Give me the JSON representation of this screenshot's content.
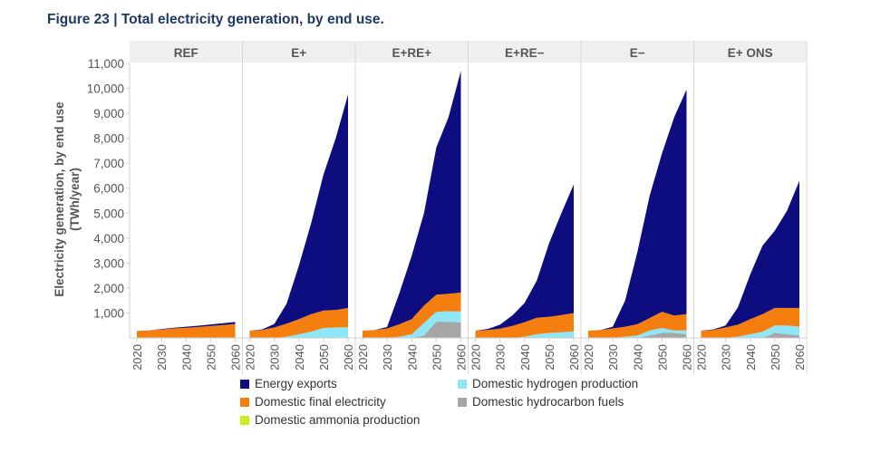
{
  "figure_title": "Figure 23 | Total electricity generation, by end use.",
  "chart_data": {
    "type": "area",
    "stacked": true,
    "ylabel_line1": "Electricity generation, by end use",
    "ylabel_line2": "(TWh/year)",
    "ylim": [
      0,
      11000
    ],
    "yticks": [
      1000,
      2000,
      3000,
      4000,
      5000,
      6000,
      7000,
      8000,
      9000,
      10000,
      11000
    ],
    "ytick_labels": [
      "1,000",
      "2,000",
      "3,000",
      "4,000",
      "5,000",
      "6,000",
      "7,000",
      "8,000",
      "9,000",
      "10,000",
      "11,000"
    ],
    "x": [
      2020,
      2025,
      2030,
      2035,
      2040,
      2045,
      2050,
      2055,
      2060
    ],
    "xtick_labels": [
      "2020",
      "2030",
      "2040",
      "2050",
      "2060"
    ],
    "grid": false,
    "legend_position": "bottom",
    "series_order": [
      "Domestic hydrocarbon fuels",
      "Domestic ammonia production",
      "Domestic hydrogen production",
      "Domestic final electricity",
      "Energy exports"
    ],
    "colors": {
      "Energy exports": "#0d0d80",
      "Domestic final electricity": "#f57f0e",
      "Domestic ammonia production": "#c5f01e",
      "Domestic hydrogen production": "#8ee6f7",
      "Domestic hydrocarbon fuels": "#a6a6a6"
    },
    "legend": [
      {
        "name": "Energy exports",
        "color": "#0d0d80"
      },
      {
        "name": "Domestic hydrogen production",
        "color": "#8ee6f7"
      },
      {
        "name": "Domestic final electricity",
        "color": "#f57f0e"
      },
      {
        "name": "Domestic hydrocarbon fuels",
        "color": "#a6a6a6"
      },
      {
        "name": "Domestic ammonia production",
        "color": "#c5f01e"
      }
    ],
    "panels": [
      {
        "name": "REF",
        "series": [
          {
            "name": "Domestic hydrocarbon fuels",
            "values": [
              0,
              0,
              0,
              0,
              0,
              0,
              0,
              0,
              0
            ]
          },
          {
            "name": "Domestic ammonia production",
            "values": [
              0,
              0,
              0,
              0,
              0,
              0,
              0,
              0,
              0
            ]
          },
          {
            "name": "Domestic hydrogen production",
            "values": [
              0,
              0,
              0,
              0,
              0,
              0,
              0,
              0,
              0
            ]
          },
          {
            "name": "Domestic final electricity",
            "values": [
              280,
              300,
              340,
              380,
              410,
              440,
              480,
              520,
              560
            ]
          },
          {
            "name": "Energy exports",
            "values": [
              0,
              0,
              20,
              30,
              40,
              50,
              60,
              70,
              80
            ]
          }
        ]
      },
      {
        "name": "E+",
        "series": [
          {
            "name": "Domestic hydrocarbon fuels",
            "values": [
              0,
              0,
              0,
              0,
              0,
              0,
              0,
              20,
              10
            ]
          },
          {
            "name": "Domestic ammonia production",
            "values": [
              0,
              0,
              0,
              0,
              0,
              0,
              0,
              0,
              0
            ]
          },
          {
            "name": "Domestic hydrogen production",
            "values": [
              0,
              0,
              0,
              50,
              150,
              250,
              400,
              400,
              420
            ]
          },
          {
            "name": "Domestic final electricity",
            "values": [
              290,
              320,
              420,
              520,
              600,
              700,
              700,
              700,
              770
            ]
          },
          {
            "name": "Energy exports",
            "values": [
              0,
              20,
              140,
              800,
              2150,
              3650,
              5450,
              6880,
              8550
            ]
          }
        ]
      },
      {
        "name": "E+RE+",
        "series": [
          {
            "name": "Domestic hydrocarbon fuels",
            "values": [
              0,
              0,
              0,
              0,
              0,
              100,
              650,
              650,
              620
            ]
          },
          {
            "name": "Domestic ammonia production",
            "values": [
              0,
              0,
              0,
              0,
              0,
              0,
              0,
              0,
              0
            ]
          },
          {
            "name": "Domestic hydrogen production",
            "values": [
              0,
              0,
              0,
              50,
              150,
              500,
              400,
              420,
              440
            ]
          },
          {
            "name": "Domestic final electricity",
            "values": [
              290,
              320,
              380,
              500,
              600,
              700,
              680,
              700,
              760
            ]
          },
          {
            "name": "Energy exports",
            "values": [
              0,
              0,
              60,
              1250,
              2550,
              3700,
              5900,
              7080,
              8880
            ]
          }
        ]
      },
      {
        "name": "E+RE−",
        "series": [
          {
            "name": "Domestic hydrocarbon fuels",
            "values": [
              0,
              0,
              0,
              0,
              0,
              0,
              0,
              0,
              0
            ]
          },
          {
            "name": "Domestic ammonia production",
            "values": [
              0,
              0,
              0,
              0,
              0,
              0,
              0,
              0,
              0
            ]
          },
          {
            "name": "Domestic hydrogen production",
            "values": [
              0,
              0,
              0,
              0,
              50,
              150,
              200,
              230,
              260
            ]
          },
          {
            "name": "Domestic final electricity",
            "values": [
              290,
              320,
              370,
              480,
              580,
              660,
              650,
              690,
              740
            ]
          },
          {
            "name": "Energy exports",
            "values": [
              0,
              40,
              160,
              420,
              770,
              1490,
              2950,
              4080,
              5150
            ]
          }
        ]
      },
      {
        "name": "E−",
        "series": [
          {
            "name": "Domestic hydrocarbon fuels",
            "values": [
              0,
              0,
              0,
              0,
              0,
              100,
              200,
              200,
              150
            ]
          },
          {
            "name": "Domestic ammonia production",
            "values": [
              0,
              0,
              0,
              0,
              0,
              0,
              0,
              0,
              0
            ]
          },
          {
            "name": "Domestic hydrogen production",
            "values": [
              0,
              0,
              0,
              50,
              100,
              200,
              200,
              100,
              150
            ]
          },
          {
            "name": "Domestic final electricity",
            "values": [
              290,
              320,
              380,
              400,
              450,
              500,
              650,
              600,
              650
            ]
          },
          {
            "name": "Energy exports",
            "values": [
              0,
              0,
              70,
              1050,
              2900,
              4900,
              6350,
              7950,
              9000
            ]
          }
        ]
      },
      {
        "name": "E+ ONS",
        "series": [
          {
            "name": "Domestic hydrocarbon fuels",
            "values": [
              0,
              0,
              0,
              0,
              0,
              0,
              200,
              150,
              100
            ]
          },
          {
            "name": "Domestic ammonia production",
            "values": [
              0,
              0,
              0,
              0,
              0,
              0,
              0,
              0,
              0
            ]
          },
          {
            "name": "Domestic hydrogen production",
            "values": [
              0,
              0,
              0,
              50,
              150,
              250,
              300,
              350,
              350
            ]
          },
          {
            "name": "Domestic final electricity",
            "values": [
              290,
              320,
              420,
              480,
              600,
              700,
              700,
              700,
              750
            ]
          },
          {
            "name": "Energy exports",
            "values": [
              0,
              20,
              80,
              700,
              1800,
              2750,
              3100,
              3900,
              5100
            ]
          }
        ]
      }
    ]
  }
}
